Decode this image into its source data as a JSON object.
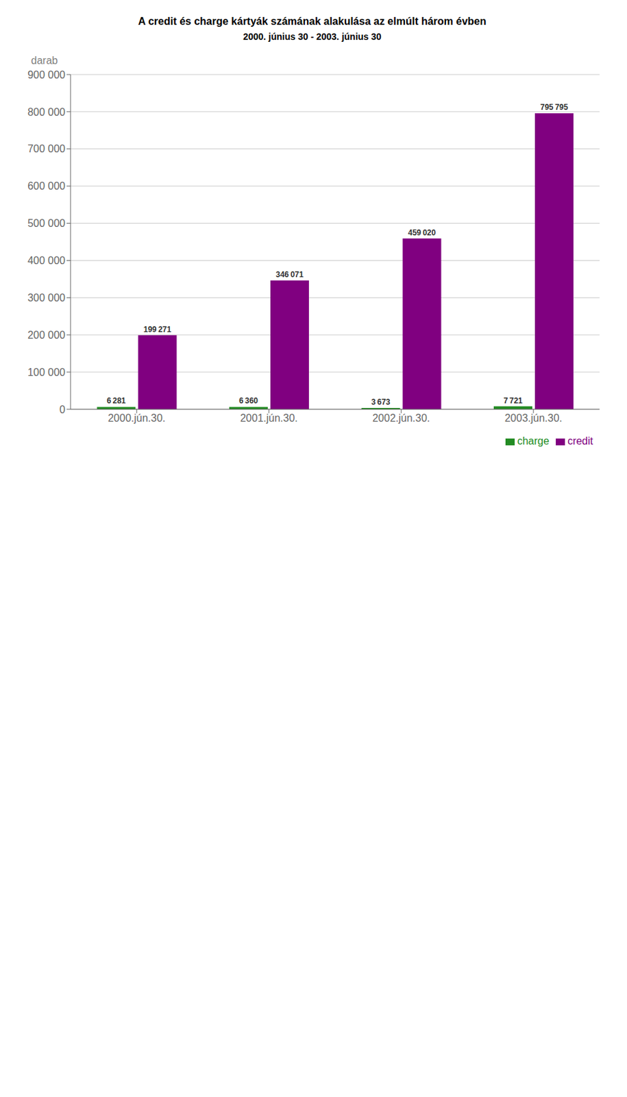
{
  "chart_data": {
    "type": "bar",
    "title": "A credit és charge kártyák számának alakulása az elmúlt három évben",
    "subtitle": "2000. június 30 - 2003. június 30",
    "ylabel": "darab",
    "categories": [
      "2000.jún.30.",
      "2001.jún.30.",
      "2002.jún.30.",
      "2003.jún.30."
    ],
    "series": [
      {
        "name": "charge",
        "color": "#228B22",
        "values": [
          6281,
          6360,
          3673,
          7721
        ],
        "value_labels": [
          "6 281",
          "6 360",
          "3 673",
          "7 721"
        ]
      },
      {
        "name": "credit",
        "color": "#800080",
        "values": [
          199271,
          346071,
          459020,
          795795
        ],
        "value_labels": [
          "199 271",
          "346 071",
          "459 020",
          "795 795"
        ]
      }
    ],
    "ylim": [
      0,
      900000
    ],
    "yticks": [
      0,
      {
        "value": 100000,
        "label": "100 000"
      },
      {
        "value": 200000,
        "label": "200 000"
      },
      {
        "value": 300000,
        "label": "300 000"
      },
      {
        "value": 400000,
        "label": "400 000"
      },
      {
        "value": 500000,
        "label": "500 000"
      },
      {
        "value": 600000,
        "label": "600 000"
      },
      {
        "value": 700000,
        "label": "700 000"
      },
      {
        "value": 800000,
        "label": "800 000"
      },
      {
        "value": 900000,
        "label": "900 000"
      }
    ],
    "grid": true,
    "data_labels": true,
    "legend": "lower right"
  }
}
